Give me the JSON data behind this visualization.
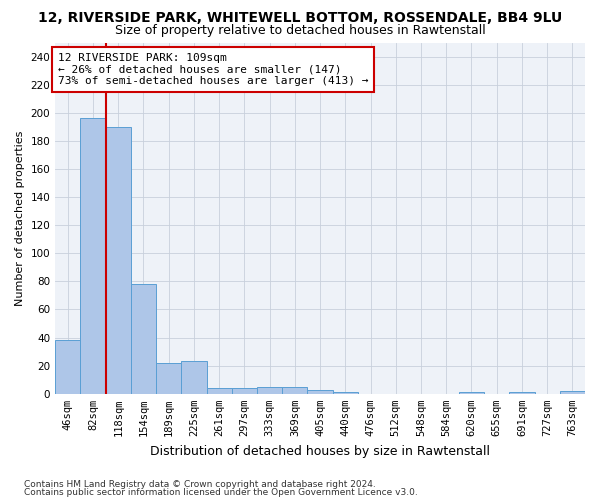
{
  "title1": "12, RIVERSIDE PARK, WHITEWELL BOTTOM, ROSSENDALE, BB4 9LU",
  "title2": "Size of property relative to detached houses in Rawtenstall",
  "xlabel": "Distribution of detached houses by size in Rawtenstall",
  "ylabel": "Number of detached properties",
  "bar_labels": [
    "46sqm",
    "82sqm",
    "118sqm",
    "154sqm",
    "189sqm",
    "225sqm",
    "261sqm",
    "297sqm",
    "333sqm",
    "369sqm",
    "405sqm",
    "440sqm",
    "476sqm",
    "512sqm",
    "548sqm",
    "584sqm",
    "620sqm",
    "655sqm",
    "691sqm",
    "727sqm",
    "763sqm"
  ],
  "bar_values": [
    38,
    196,
    190,
    78,
    22,
    23,
    4,
    4,
    5,
    5,
    3,
    1,
    0,
    0,
    0,
    0,
    1,
    0,
    1,
    0,
    2
  ],
  "bar_color": "#aec6e8",
  "bar_edge_color": "#5a9fd4",
  "vline_x": 1.5,
  "vline_color": "#cc0000",
  "annotation_line1": "12 RIVERSIDE PARK: 109sqm",
  "annotation_line2": "← 26% of detached houses are smaller (147)",
  "annotation_line3": "73% of semi-detached houses are larger (413) →",
  "annotation_box_color": "#ffffff",
  "annotation_box_edge_color": "#cc0000",
  "ylim": [
    0,
    250
  ],
  "yticks": [
    0,
    20,
    40,
    60,
    80,
    100,
    120,
    140,
    160,
    180,
    200,
    220,
    240
  ],
  "footer1": "Contains HM Land Registry data © Crown copyright and database right 2024.",
  "footer2": "Contains public sector information licensed under the Open Government Licence v3.0.",
  "bg_color": "#ffffff",
  "plot_bg_color": "#eef2f8",
  "grid_color": "#c8d0dc",
  "title1_fontsize": 10,
  "title2_fontsize": 9,
  "xlabel_fontsize": 9,
  "ylabel_fontsize": 8,
  "tick_fontsize": 7.5,
  "annotation_fontsize": 8,
  "footer_fontsize": 6.5
}
